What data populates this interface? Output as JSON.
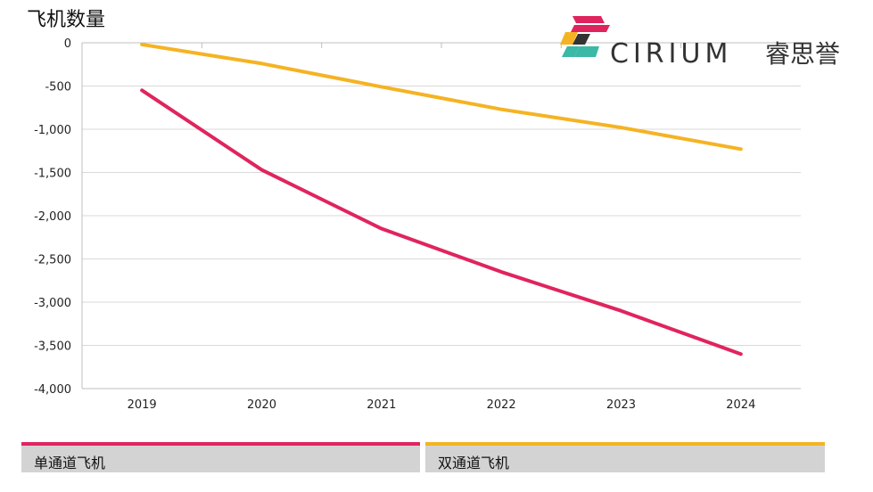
{
  "chart_data": {
    "type": "line",
    "title": "",
    "ylabel": "飞机数量",
    "xlabel": "",
    "categories": [
      "2019",
      "2020",
      "2021",
      "2022",
      "2023",
      "2024"
    ],
    "ylim": [
      -4000,
      0
    ],
    "yticks": [
      0,
      -500,
      -1000,
      -1500,
      -2000,
      -2500,
      -3000,
      -3500,
      -4000
    ],
    "ytick_labels": [
      "0",
      "-500",
      "-1,000",
      "-1,500",
      "-2,000",
      "-2,500",
      "-3,000",
      "-3,500",
      "-4,000"
    ],
    "grid": true,
    "series": [
      {
        "name": "单通道飞机",
        "color": "#e0245e",
        "values": [
          -550,
          -1470,
          -2150,
          -2650,
          -3100,
          -3600
        ]
      },
      {
        "name": "双通道飞机",
        "color": "#f5b323",
        "values": [
          -20,
          -240,
          -510,
          -770,
          -980,
          -1230
        ]
      }
    ]
  },
  "logo": {
    "text": "CIRIUM",
    "cn": "睿思誉"
  }
}
